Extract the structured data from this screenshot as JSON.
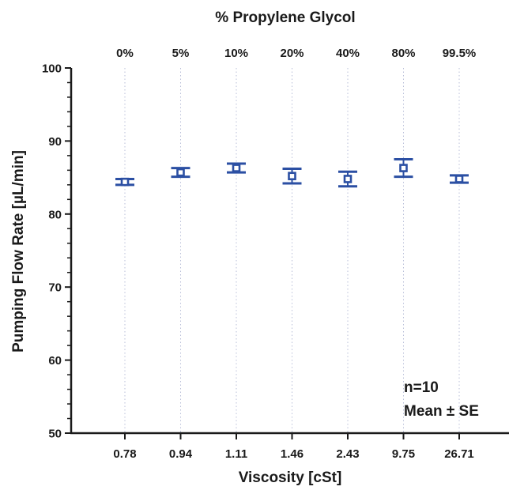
{
  "chart_data": {
    "type": "scatter",
    "title": "",
    "top_axis_label": "% Propylene Glycol",
    "top_tick_labels": [
      "0%",
      "5%",
      "10%",
      "20%",
      "40%",
      "80%",
      "99.5%"
    ],
    "xlabel": "Viscosity [cSt]",
    "ylabel": "Pumping Flow Rate [µL/min]",
    "categories": [
      "0.78",
      "0.94",
      "1.11",
      "1.46",
      "2.43",
      "9.75",
      "26.71"
    ],
    "values": [
      84.4,
      85.7,
      86.3,
      85.2,
      84.8,
      86.3,
      84.8
    ],
    "error": [
      0.4,
      0.6,
      0.6,
      1.0,
      1.0,
      1.2,
      0.5
    ],
    "ylim": [
      50,
      100
    ],
    "yticks": [
      50,
      60,
      70,
      80,
      90,
      100
    ],
    "grid": "vertical dotted",
    "annotations": [
      "n=10",
      "Mean ± SE"
    ],
    "color": "#2b4fa3"
  }
}
